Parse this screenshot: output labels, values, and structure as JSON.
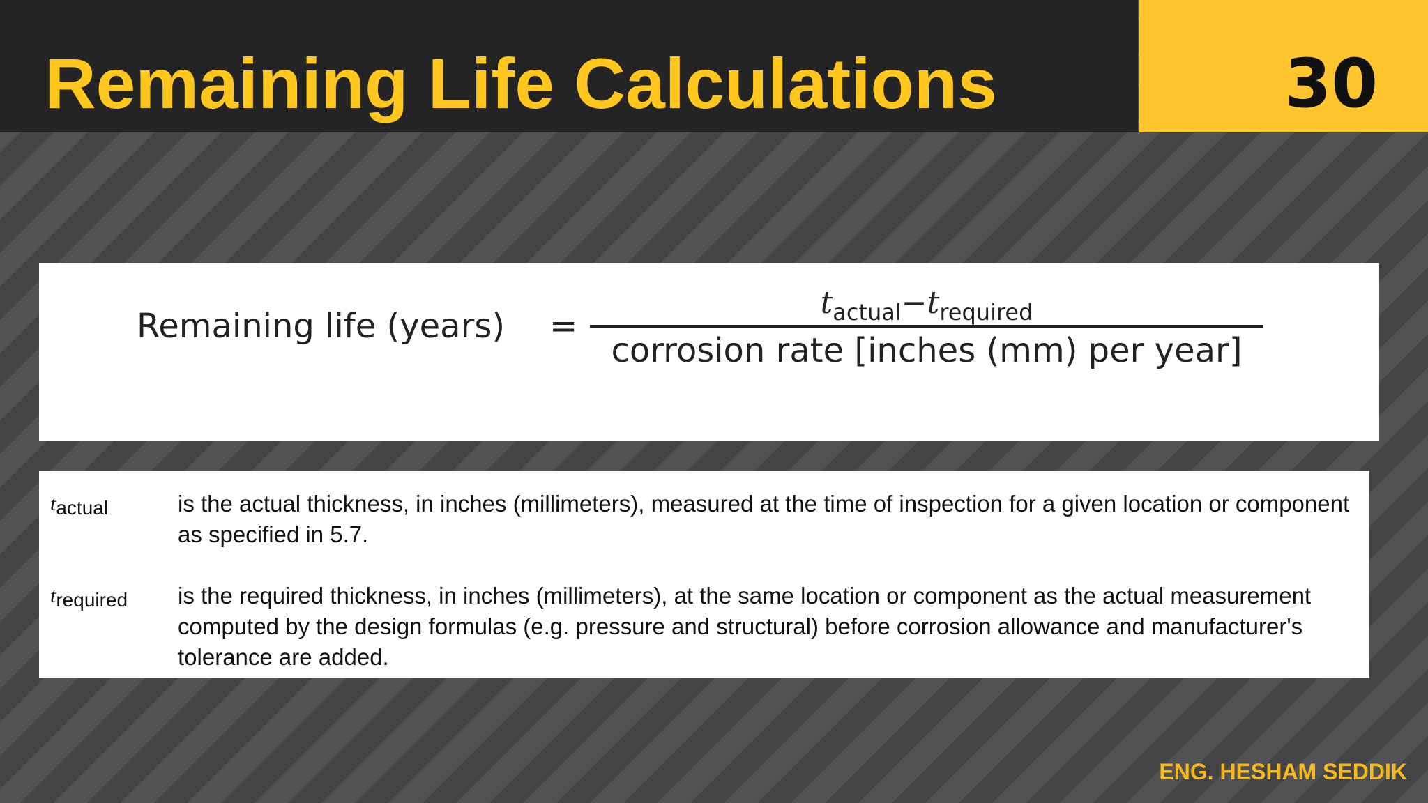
{
  "header": {
    "title": "Remaining Life Calculations",
    "slide_number": "30"
  },
  "formula": {
    "lhs": "Remaining life (years)",
    "equals": "=",
    "numerator": {
      "t1": "t",
      "t1_sub": "actual",
      "minus": "−",
      "t2": "t",
      "t2_sub": "required"
    },
    "denominator": "corrosion rate [inches (mm) per year]"
  },
  "definitions": [
    {
      "symbol": "t",
      "symbol_sub": "actual",
      "text": "is the actual thickness, in inches (millimeters), measured at the time of inspection for a given location or component as specified in 5.7."
    },
    {
      "symbol": "t",
      "symbol_sub": "required",
      "text": "is the required thickness, in inches (millimeters), at the same location or component as the actual measurement computed by the design formulas (e.g. pressure and structural) before corrosion allowance and manufacturer's tolerance are added."
    }
  ],
  "footer": {
    "credit": "ENG. HESHAM SEDDIK"
  },
  "colors": {
    "accent_yellow": "#ffc61e",
    "number_box": "#fec52e",
    "header_bg": "#242424"
  }
}
